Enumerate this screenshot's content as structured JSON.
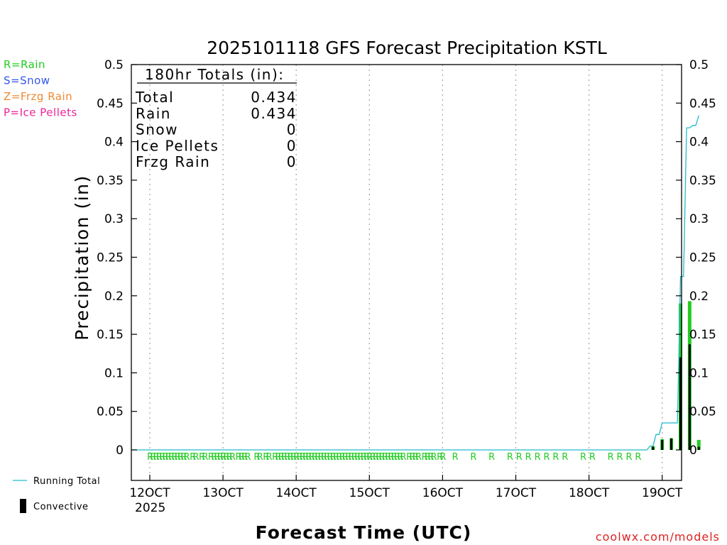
{
  "title": "2025101118 GFS Forecast Precipitation KSTL",
  "ylabel": "Precipitation (in)",
  "xlabel": "Forecast Time (UTC)",
  "credit": "coolwx.com/models",
  "year_label": "2025",
  "legend_types": [
    {
      "text": "R=Rain",
      "color": "#22cc22"
    },
    {
      "text": "S=Snow",
      "color": "#3355ee"
    },
    {
      "text": "Z=Frzg Rain",
      "color": "#ee8833"
    },
    {
      "text": "P=Ice Pellets",
      "color": "#ee2299"
    }
  ],
  "legend_running_total": "Running Total",
  "legend_convective": "Convective",
  "totals": {
    "header": "180hr Totals (in):",
    "rows": [
      {
        "label": "Total",
        "value": "0.434"
      },
      {
        "label": "Rain",
        "value": "0.434"
      },
      {
        "label": "Snow",
        "value": "0"
      },
      {
        "label": "Ice Pellets",
        "value": "0"
      },
      {
        "label": "Frzg Rain",
        "value": "0"
      }
    ]
  },
  "chart_data": {
    "type": "bar",
    "title": "2025101118 GFS Forecast Precipitation KSTL",
    "xlabel": "Forecast Time (UTC)",
    "ylabel": "Precipitation (in)",
    "ylim": [
      0,
      0.5
    ],
    "y_ticks": [
      "0",
      "0.05",
      "0.1",
      "0.15",
      "0.2",
      "0.25",
      "0.3",
      "0.35",
      "0.4",
      "0.45",
      "0.5"
    ],
    "x_tick_labels": [
      "12OCT",
      "13OCT",
      "14OCT",
      "15OCT",
      "16OCT",
      "17OCT",
      "18OCT",
      "19OCT"
    ],
    "grid": true,
    "series": [
      {
        "name": "Rain",
        "color": "#22cc22",
        "hours": [
          165,
          168,
          171,
          174,
          177,
          180
        ],
        "values": [
          0.005,
          0.014,
          0.015,
          0.19,
          0.193,
          0.013
        ]
      },
      {
        "name": "Convective",
        "color": "#000000",
        "hours": [
          165,
          168,
          171,
          174,
          177,
          180
        ],
        "values": [
          0.004,
          0.013,
          0.015,
          0.12,
          0.137,
          0.004
        ]
      },
      {
        "name": "Running Total",
        "color": "#22bbcc",
        "hours": [
          0,
          163,
          164,
          165,
          166,
          167,
          168,
          169,
          170,
          173,
          174,
          175,
          176,
          177,
          178,
          179,
          180
        ],
        "values": [
          0,
          0,
          0.005,
          0.005,
          0.02,
          0.02,
          0.035,
          0.035,
          0.035,
          0.035,
          0.225,
          0.225,
          0.418,
          0.418,
          0.421,
          0.421,
          0.434
        ]
      }
    ],
    "ptype_marks": "R",
    "ptype_hours": [
      0,
      1,
      2,
      3,
      4,
      5,
      6,
      7,
      8,
      9,
      10,
      11,
      12,
      14,
      15,
      17,
      18,
      20,
      21,
      22,
      23,
      24,
      25,
      26,
      27,
      29,
      30,
      31,
      32,
      35,
      36,
      38,
      39,
      41,
      42,
      43,
      44,
      45,
      46,
      47,
      48,
      49,
      50,
      51,
      52,
      53,
      54,
      55,
      56,
      57,
      58,
      59,
      60,
      61,
      62,
      63,
      64,
      65,
      66,
      67,
      68,
      69,
      70,
      71,
      72,
      73,
      74,
      75,
      76,
      77,
      78,
      79,
      80,
      81,
      82,
      83,
      85,
      86,
      87,
      88,
      90,
      91,
      92,
      93,
      95,
      96,
      100,
      106,
      112,
      118,
      121,
      124,
      127,
      130,
      133,
      136,
      142,
      145,
      151,
      154,
      157,
      160
    ]
  }
}
